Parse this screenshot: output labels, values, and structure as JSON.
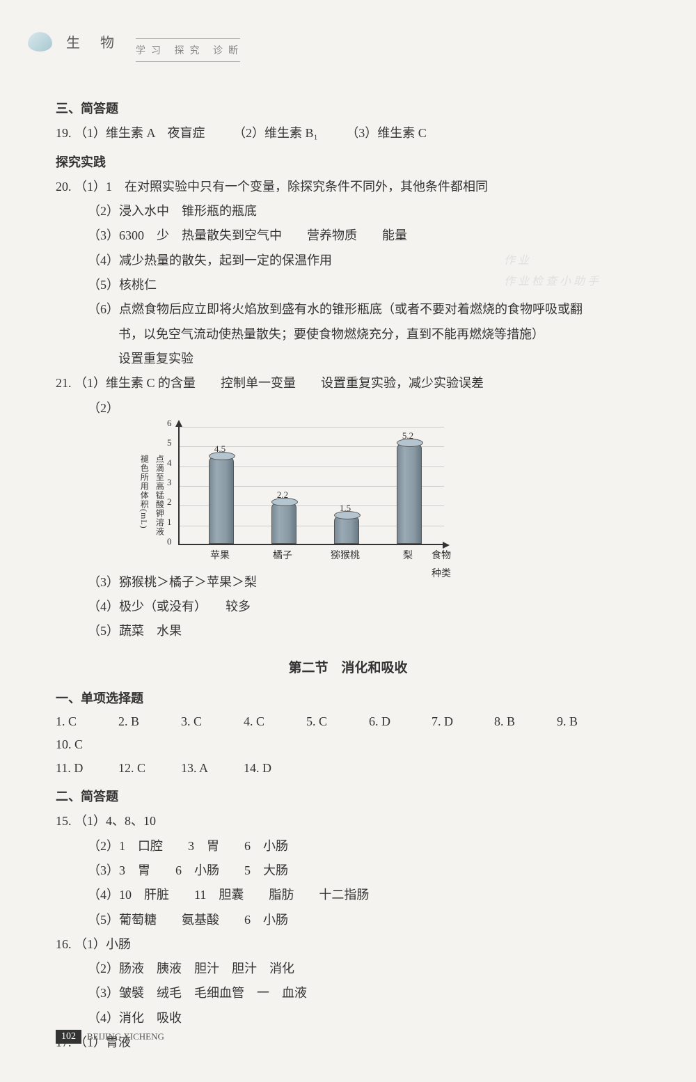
{
  "header": {
    "logo_text": "生    物",
    "subtitle": "学习  探究  诊断"
  },
  "sections": {
    "heading3": "三、简答题",
    "q19": {
      "prefix": "19.",
      "p1": "（1）维生素 A　夜盲症",
      "p2": "（2）维生素 B₁",
      "p3": "（3）维生素 C"
    },
    "tanjiu": "探究实践",
    "q20": {
      "prefix": "20.",
      "p1": "（1）1　在对照实验中只有一个变量，除探究条件不同外，其他条件都相同",
      "p2": "（2）浸入水中　锥形瓶的瓶底",
      "p3": "（3）6300　少　热量散失到空气中　　营养物质　　能量",
      "p4": "（4）减少热量的散失，起到一定的保温作用",
      "p5": "（5）核桃仁",
      "p6a": "（6）点燃食物后应立即将火焰放到盛有水的锥形瓶底（或者不要对着燃烧的食物呼吸或翻",
      "p6b": "书，以免空气流动使热量散失；要使食物燃烧充分，直到不能再燃烧等措施）",
      "p6c": "设置重复实验"
    },
    "q21": {
      "prefix": "21.",
      "p1": "（1）维生素 C 的含量　　控制单一变量　　设置重复实验，减少实验误差",
      "p2_label": "（2）",
      "p3": "（3）猕猴桃＞橘子＞苹果＞梨",
      "p4": "（4）极少（或没有）　　较多",
      "p5": "（5）蔬菜　水果"
    },
    "chart": {
      "type": "bar",
      "yaxis_label": "点滴至高锰酸钾溶液\n褪色所用体积(mL)",
      "xaxis_label": "食物种类",
      "ylim": [
        0,
        6
      ],
      "yticks": [
        0,
        1,
        2,
        3,
        4,
        5,
        6
      ],
      "categories": [
        "苹果",
        "橘子",
        "猕猴桃",
        "梨"
      ],
      "values": [
        4.5,
        2.2,
        1.5,
        5.2
      ],
      "bar_color": "#8a9aa5",
      "grid_color": "#cccccc",
      "axis_color": "#333333",
      "background_color": "#f5f3f0",
      "label_fontsize": 13
    },
    "section2_title": "第二节　消化和吸收",
    "heading1": "一、单项选择题",
    "mc": {
      "row1": [
        "1. C",
        "2. B",
        "3. C",
        "4. C",
        "5. C",
        "6. D",
        "7. D",
        "8. B",
        "9. B",
        "10. C"
      ],
      "row2": [
        "11. D",
        "12. C",
        "13. A",
        "14. D"
      ]
    },
    "heading2": "二、简答题",
    "q15": {
      "prefix": "15.",
      "p1": "（1）4、8、10",
      "p2": "（2）1　口腔　　3　胃　　6　小肠",
      "p3": "（3）3　胃　　6　小肠　　5　大肠",
      "p4": "（4）10　肝脏　　11　胆囊　　脂肪　　十二指肠",
      "p5": "（5）葡萄糖　　氨基酸　　6　小肠"
    },
    "q16": {
      "prefix": "16.",
      "p1": "（1）小肠",
      "p2": "（2）肠液　胰液　胆汁　胆汁　消化",
      "p3": "（3）皱襞　绒毛　毛细血管　一　血液",
      "p4": "（4）消化　吸收"
    },
    "q17": {
      "prefix": "17.",
      "p1": "（1）胃液"
    }
  },
  "watermark": {
    "line1": "作 业",
    "line2": "作 业 检 查 小 助 手"
  },
  "footer": {
    "page_num": "102",
    "text": "BEIJING XICHENG"
  }
}
